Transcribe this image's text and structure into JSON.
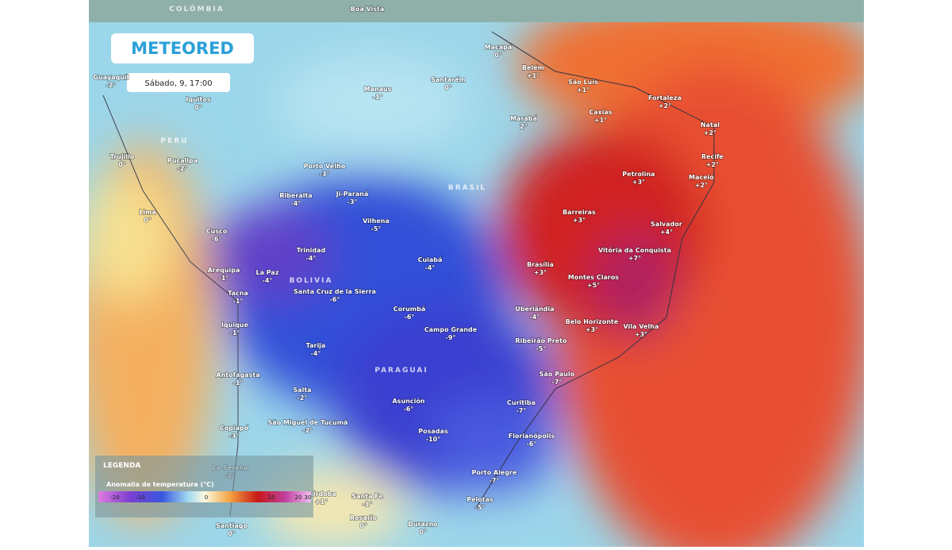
{
  "logo": "METEORED",
  "timestamp": "Sábado, 9, 17:00",
  "regions": [
    "COLÔMBIA",
    "PERU",
    "BOLIVIA",
    "BRASIL",
    "PARAGUAI"
  ],
  "cities": [
    {
      "name": "Boa Vista",
      "value": ""
    },
    {
      "name": "Guayaquil",
      "value": "-2°"
    },
    {
      "name": "Iquitos",
      "value": "0°"
    },
    {
      "name": "Macapá",
      "value": "0°"
    },
    {
      "name": "Belém",
      "value": "+1°"
    },
    {
      "name": "São Luís",
      "value": "+1°"
    },
    {
      "name": "Fortaleza",
      "value": "+2°"
    },
    {
      "name": "Manaus",
      "value": "-1°"
    },
    {
      "name": "Santarém",
      "value": "0°"
    },
    {
      "name": "Marabá",
      "value": "2°"
    },
    {
      "name": "Caxias",
      "value": "+1°"
    },
    {
      "name": "Natal",
      "value": "+2°"
    },
    {
      "name": "Recife",
      "value": "+2°"
    },
    {
      "name": "Maceió",
      "value": "+2°"
    },
    {
      "name": "Trujillo",
      "value": "0°"
    },
    {
      "name": "Pucallpa",
      "value": "-2°"
    },
    {
      "name": "Porto Velho",
      "value": "-3°"
    },
    {
      "name": "Petrolina",
      "value": "+3°"
    },
    {
      "name": "Riberalta",
      "value": "-4°"
    },
    {
      "name": "Ji-Paraná",
      "value": "-3°"
    },
    {
      "name": "Vilhena",
      "value": "-5°"
    },
    {
      "name": "Barreiras",
      "value": "+3°"
    },
    {
      "name": "Salvador",
      "value": "+4°"
    },
    {
      "name": "Lima",
      "value": "0°"
    },
    {
      "name": "Cusco",
      "value": "-6°"
    },
    {
      "name": "Trinidad",
      "value": "-4°"
    },
    {
      "name": "Cuiabá",
      "value": "-4°"
    },
    {
      "name": "Brasília",
      "value": "+3°"
    },
    {
      "name": "Vitória da Conquista",
      "value": "+7°"
    },
    {
      "name": "Arequipa",
      "value": "-1°"
    },
    {
      "name": "La Paz",
      "value": "-4°"
    },
    {
      "name": "Montes Claros",
      "value": "+5°"
    },
    {
      "name": "Santa Cruz de la Sierra",
      "value": "-6°"
    },
    {
      "name": "Tacna",
      "value": "-1°"
    },
    {
      "name": "Corumbá",
      "value": "-6°"
    },
    {
      "name": "Uberlândia",
      "value": "-4°"
    },
    {
      "name": "Iquique",
      "value": "-1°"
    },
    {
      "name": "Belo Horizonte",
      "value": "+3°"
    },
    {
      "name": "Campo Grande",
      "value": "-9°"
    },
    {
      "name": "Vila Velha",
      "value": "+3°"
    },
    {
      "name": "Ribeirão Preto",
      "value": "-5°"
    },
    {
      "name": "Tarija",
      "value": "-4°"
    },
    {
      "name": "São Paulo",
      "value": "-7°"
    },
    {
      "name": "Antofagasta",
      "value": "-1°"
    },
    {
      "name": "Salta",
      "value": "-2°"
    },
    {
      "name": "Asunción",
      "value": "-6°"
    },
    {
      "name": "Curitiba",
      "value": "-7°"
    },
    {
      "name": "São Miguel de Tucumã",
      "value": "-2°"
    },
    {
      "name": "Copiapó",
      "value": "-3°"
    },
    {
      "name": "Posadas",
      "value": "-10°"
    },
    {
      "name": "Florianópolis",
      "value": "-6°"
    },
    {
      "name": "Porto Alegre",
      "value": "-7°"
    },
    {
      "name": "La Serena",
      "value": "-2°"
    },
    {
      "name": "Pelotas",
      "value": "-5°"
    },
    {
      "name": "Córdoba",
      "value": "+1°"
    },
    {
      "name": "Santa Fe",
      "value": "-1°"
    },
    {
      "name": "Rosario",
      "value": "0°"
    },
    {
      "name": "Durazno",
      "value": "0°"
    },
    {
      "name": "Santiago",
      "value": "0°"
    }
  ],
  "legend": {
    "title": "LEGENDA",
    "subtitle": "Anomalia de temperatura (°C)",
    "ticks": [
      "-20",
      "-10",
      "0",
      "10",
      "20",
      "30"
    ]
  }
}
